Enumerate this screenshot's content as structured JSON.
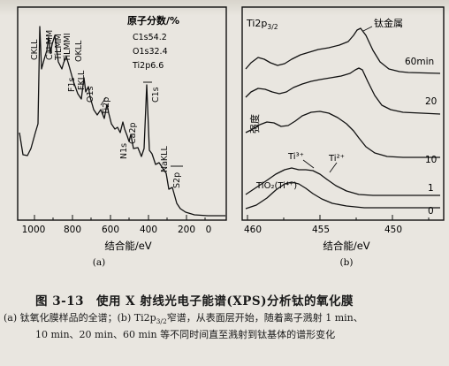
{
  "panel_a": {
    "title": "原子分数/%",
    "composition": [
      "C1s54.2",
      "O1s32.4",
      "Ti2p6.6"
    ],
    "peak_labels": [
      "CKLL",
      "CaLMM",
      "TiLMM",
      "TiLMMI",
      "OKLL",
      "F1s",
      "FKLL",
      "O1s",
      "Ti2p",
      "N1s",
      "Ca2p",
      "C1s",
      "NaKLL",
      "S2p"
    ],
    "x_ticks": [
      "1000",
      "800",
      "600",
      "400",
      "200",
      "0"
    ],
    "xlabel": "结合能/eV",
    "sublabel": "(a)"
  },
  "panel_b": {
    "title_main": "Ti2p",
    "title_sub": "3/2",
    "metal_label": "钛金属",
    "ylabel": "强度",
    "time_labels": [
      "60min",
      "20",
      "10",
      "1",
      "0"
    ],
    "state_labels": [
      "Ti³⁺",
      "Ti²⁺",
      "TiO₂(Ti⁴⁺)"
    ],
    "x_ticks": [
      "460",
      "455",
      "450"
    ],
    "xlabel": "结合能/eV",
    "sublabel": "(b)"
  },
  "caption": {
    "title": "图 3-13　使用 X 射线光电子能谱(XPS)分析钛的氧化膜",
    "line1_pre": "(a) 钛氧化膜样品的全谱；(b) Ti2p",
    "line1_sub": "3/2",
    "line1_post": "窄谱，从表面层开始，随着离子溅射 1 min、",
    "line2": "10 min、20 min、60 min 等不同时间直至溅射到钛基体的谱形变化"
  }
}
